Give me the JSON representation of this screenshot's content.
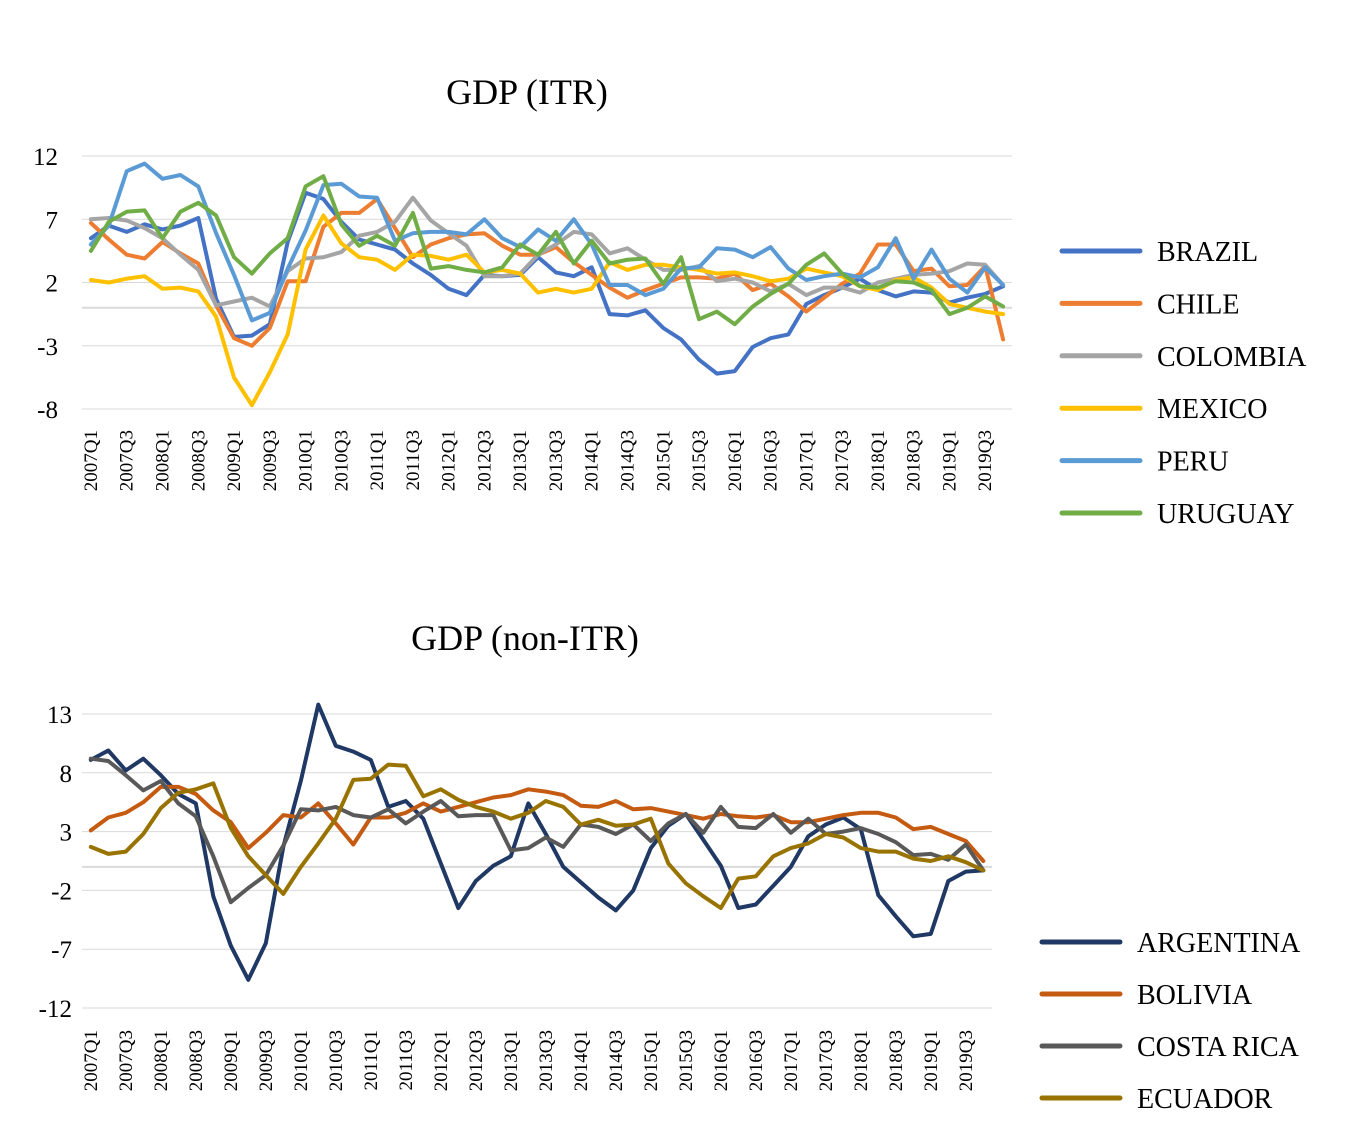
{
  "chart_data": [
    {
      "type": "line",
      "title": "GDP (ITR)",
      "xlabel": "",
      "ylabel": "",
      "ylim": [
        -8,
        12
      ],
      "yticks": [
        12,
        7,
        2,
        -3,
        -8
      ],
      "grid": true,
      "legend_position": "right",
      "x": [
        "2007Q1",
        "2007Q2",
        "2007Q3",
        "2007Q4",
        "2008Q1",
        "2008Q2",
        "2008Q3",
        "2008Q4",
        "2009Q1",
        "2009Q2",
        "2009Q3",
        "2009Q4",
        "2010Q1",
        "2010Q2",
        "2010Q3",
        "2010Q4",
        "2011Q1",
        "2011Q2",
        "2011Q3",
        "2011Q4",
        "2012Q1",
        "2012Q2",
        "2012Q3",
        "2012Q4",
        "2013Q1",
        "2013Q2",
        "2013Q3",
        "2013Q4",
        "2014Q1",
        "2014Q2",
        "2014Q3",
        "2014Q4",
        "2015Q1",
        "2015Q2",
        "2015Q3",
        "2015Q4",
        "2016Q1",
        "2016Q2",
        "2016Q3",
        "2016Q4",
        "2017Q1",
        "2017Q2",
        "2017Q3",
        "2017Q4",
        "2018Q1",
        "2018Q2",
        "2018Q3",
        "2018Q4",
        "2019Q1",
        "2019Q2",
        "2019Q3",
        "2019Q4"
      ],
      "xticks": [
        "2007Q1",
        "2007Q3",
        "2008Q1",
        "2008Q3",
        "2009Q1",
        "2009Q3",
        "2010Q1",
        "2010Q3",
        "2011Q1",
        "2011Q3",
        "2012Q1",
        "2012Q3",
        "2013Q1",
        "2013Q3",
        "2014Q1",
        "2014Q3",
        "2015Q1",
        "2015Q3",
        "2016Q1",
        "2016Q3",
        "2017Q1",
        "2017Q3",
        "2018Q1",
        "2018Q3",
        "2019Q1",
        "2019Q3"
      ],
      "series": [
        {
          "name": "BRAZIL",
          "color": "#4472c4",
          "values": [
            5.5,
            6.5,
            6.0,
            6.6,
            6.2,
            6.5,
            7.1,
            0.7,
            -2.3,
            -2.2,
            -1.3,
            5.2,
            9.1,
            8.6,
            6.8,
            5.4,
            5.0,
            4.6,
            3.5,
            2.6,
            1.5,
            1.0,
            2.6,
            2.5,
            2.6,
            4.0,
            2.8,
            2.5,
            3.2,
            -0.5,
            -0.6,
            -0.2,
            -1.6,
            -2.5,
            -4.1,
            -5.2,
            -5.0,
            -3.1,
            -2.4,
            -2.1,
            0.3,
            1.0,
            1.6,
            2.3,
            1.4,
            0.9,
            1.3,
            1.2,
            0.4,
            0.8,
            1.1,
            1.7
          ]
        },
        {
          "name": "CHILE",
          "color": "#ed7d31",
          "values": [
            6.7,
            5.4,
            4.2,
            3.9,
            5.2,
            4.3,
            3.5,
            0.2,
            -2.4,
            -3.0,
            -1.6,
            2.1,
            2.1,
            6.4,
            7.5,
            7.5,
            8.6,
            6.3,
            4.0,
            5.0,
            5.5,
            5.8,
            5.9,
            4.9,
            4.2,
            4.2,
            4.8,
            3.6,
            2.6,
            1.6,
            0.8,
            1.4,
            1.9,
            2.4,
            2.4,
            2.3,
            2.7,
            1.4,
            1.9,
            0.9,
            -0.3,
            0.8,
            1.9,
            2.7,
            5.0,
            5.0,
            2.9,
            3.1,
            1.7,
            1.8,
            3.3,
            -2.5
          ]
        },
        {
          "name": "COLOMBIA",
          "color": "#a5a5a5",
          "values": [
            7.0,
            7.1,
            6.9,
            6.3,
            5.5,
            4.2,
            3.0,
            0.2,
            0.5,
            0.8,
            0.1,
            2.9,
            3.9,
            4.0,
            4.4,
            5.7,
            6.0,
            6.8,
            8.7,
            6.9,
            5.9,
            4.9,
            2.5,
            2.5,
            2.7,
            4.2,
            5.0,
            6.0,
            5.8,
            4.3,
            4.7,
            3.8,
            3.0,
            3.0,
            3.3,
            2.1,
            2.3,
            2.0,
            1.3,
            1.9,
            1.0,
            1.6,
            1.6,
            1.2,
            2.0,
            2.3,
            2.6,
            2.7,
            2.9,
            3.5,
            3.4,
            1.8
          ]
        },
        {
          "name": "MEXICO",
          "color": "#ffc000",
          "values": [
            2.2,
            2.0,
            2.3,
            2.5,
            1.5,
            1.6,
            1.3,
            -0.7,
            -5.5,
            -7.7,
            -5.1,
            -2.1,
            4.6,
            7.3,
            5.1,
            4.0,
            3.8,
            3.0,
            4.2,
            4.1,
            3.8,
            4.2,
            2.8,
            3.0,
            2.7,
            1.2,
            1.5,
            1.2,
            1.5,
            3.6,
            3.0,
            3.4,
            3.4,
            3.2,
            3.0,
            2.7,
            2.8,
            2.5,
            2.1,
            2.3,
            3.1,
            2.8,
            2.5,
            1.7,
            1.4,
            2.2,
            2.4,
            1.6,
            0.3,
            0.0,
            -0.3,
            -0.5
          ]
        },
        {
          "name": "PERU",
          "color": "#5b9bd5",
          "values": [
            5.0,
            6.5,
            10.8,
            11.4,
            10.2,
            10.5,
            9.6,
            5.9,
            2.6,
            -1.0,
            -0.4,
            3.1,
            6.1,
            9.7,
            9.8,
            8.8,
            8.7,
            5.3,
            5.9,
            6.0,
            6.0,
            5.8,
            7.0,
            5.5,
            4.8,
            6.2,
            5.3,
            7.0,
            5.0,
            1.8,
            1.8,
            1.0,
            1.5,
            3.1,
            3.2,
            4.7,
            4.6,
            4.0,
            4.8,
            3.1,
            2.2,
            2.5,
            2.7,
            2.4,
            3.2,
            5.5,
            2.3,
            4.6,
            2.3,
            1.2,
            3.2,
            1.8
          ]
        },
        {
          "name": "URUGUAY",
          "color": "#70ad47",
          "values": [
            4.5,
            6.8,
            7.6,
            7.7,
            5.5,
            7.6,
            8.3,
            7.3,
            4.0,
            2.7,
            4.3,
            5.5,
            9.6,
            10.4,
            6.6,
            4.9,
            5.7,
            4.9,
            7.5,
            3.1,
            3.3,
            3.0,
            2.8,
            3.2,
            5.0,
            4.2,
            6.0,
            3.5,
            5.3,
            3.5,
            3.8,
            3.9,
            1.9,
            4.0,
            -0.9,
            -0.3,
            -1.3,
            0.1,
            1.1,
            1.9,
            3.4,
            4.3,
            2.7,
            1.7,
            1.6,
            2.1,
            2.0,
            1.4,
            -0.5,
            0.0,
            0.9,
            0.1
          ]
        }
      ]
    },
    {
      "type": "line",
      "title": "GDP (non-ITR)",
      "xlabel": "",
      "ylabel": "",
      "ylim": [
        -12,
        13
      ],
      "yticks": [
        13,
        8,
        3,
        -2,
        -7,
        -12
      ],
      "grid": true,
      "legend_position": "bottom-right",
      "x": [
        "2007Q1",
        "2007Q2",
        "2007Q3",
        "2007Q4",
        "2008Q1",
        "2008Q2",
        "2008Q3",
        "2008Q4",
        "2009Q1",
        "2009Q2",
        "2009Q3",
        "2009Q4",
        "2010Q1",
        "2010Q2",
        "2010Q3",
        "2010Q4",
        "2011Q1",
        "2011Q2",
        "2011Q3",
        "2011Q4",
        "2012Q1",
        "2012Q2",
        "2012Q3",
        "2012Q4",
        "2013Q1",
        "2013Q2",
        "2013Q3",
        "2013Q4",
        "2014Q1",
        "2014Q2",
        "2014Q3",
        "2014Q4",
        "2015Q1",
        "2015Q2",
        "2015Q3",
        "2015Q4",
        "2016Q1",
        "2016Q2",
        "2016Q3",
        "2016Q4",
        "2017Q1",
        "2017Q2",
        "2017Q3",
        "2017Q4",
        "2018Q1",
        "2018Q2",
        "2018Q3",
        "2018Q4",
        "2019Q1",
        "2019Q2",
        "2019Q3",
        "2019Q4"
      ],
      "xticks": [
        "2007Q1",
        "2007Q3",
        "2008Q1",
        "2008Q3",
        "2009Q1",
        "2009Q3",
        "2010Q1",
        "2010Q3",
        "2011Q1",
        "2011Q3",
        "2012Q1",
        "2012Q3",
        "2013Q1",
        "2013Q3",
        "2014Q1",
        "2014Q3",
        "2015Q1",
        "2015Q3",
        "2016Q1",
        "2016Q3",
        "2017Q1",
        "2017Q3",
        "2018Q1",
        "2018Q3",
        "2019Q1",
        "2019Q3"
      ],
      "series": [
        {
          "name": "ARGENTINA",
          "color": "#203864",
          "values": [
            9.1,
            9.9,
            8.2,
            9.2,
            7.8,
            6.2,
            5.4,
            -2.5,
            -6.7,
            -9.6,
            -6.5,
            1.7,
            7.3,
            13.8,
            10.3,
            9.8,
            9.1,
            5.1,
            5.6,
            4.1,
            0.3,
            -3.5,
            -1.2,
            0.1,
            0.9,
            5.4,
            2.8,
            0.0,
            -1.3,
            -2.6,
            -3.7,
            -2.0,
            1.6,
            3.5,
            4.5,
            2.3,
            0.1,
            -3.5,
            -3.2,
            -1.6,
            0.0,
            2.6,
            3.6,
            4.2,
            3.2,
            -2.4,
            -4.2,
            -5.9,
            -5.7,
            -1.2,
            -0.4,
            -0.3
          ]
        },
        {
          "name": "BOLIVIA",
          "color": "#c55a11",
          "values": [
            3.1,
            4.2,
            4.6,
            5.5,
            6.8,
            6.8,
            6.2,
            4.8,
            3.8,
            1.6,
            2.9,
            4.4,
            4.2,
            5.4,
            3.7,
            1.9,
            4.2,
            4.2,
            4.6,
            5.4,
            4.7,
            5.1,
            5.5,
            5.9,
            6.1,
            6.6,
            6.4,
            6.1,
            5.2,
            5.1,
            5.6,
            4.9,
            5.0,
            4.7,
            4.4,
            4.1,
            4.5,
            4.3,
            4.2,
            4.4,
            3.8,
            3.8,
            4.1,
            4.4,
            4.6,
            4.6,
            4.2,
            3.2,
            3.4,
            2.8,
            2.2,
            0.5
          ]
        },
        {
          "name": "COSTA RICA",
          "color": "#595959",
          "values": [
            9.2,
            9.0,
            7.8,
            6.5,
            7.3,
            5.4,
            4.3,
            0.9,
            -3.0,
            -1.8,
            -0.7,
            1.8,
            4.9,
            4.8,
            5.1,
            4.4,
            4.2,
            4.9,
            3.7,
            4.7,
            5.6,
            4.3,
            4.4,
            4.4,
            1.4,
            1.6,
            2.5,
            1.7,
            3.6,
            3.4,
            2.8,
            3.6,
            2.2,
            3.7,
            4.5,
            2.9,
            5.1,
            3.4,
            3.3,
            4.5,
            2.9,
            4.1,
            2.8,
            3.0,
            3.3,
            2.8,
            2.1,
            1.0,
            1.1,
            0.6,
            1.9,
            -0.3
          ]
        },
        {
          "name": "ECUADOR",
          "color": "#997300",
          "values": [
            1.7,
            1.1,
            1.3,
            2.8,
            5.0,
            6.3,
            6.6,
            7.1,
            3.3,
            0.9,
            -0.7,
            -2.3,
            0.0,
            2.0,
            4.1,
            7.4,
            7.5,
            8.7,
            8.6,
            6.0,
            6.6,
            5.7,
            5.1,
            4.7,
            4.1,
            4.6,
            5.6,
            5.1,
            3.6,
            4.0,
            3.5,
            3.6,
            4.1,
            0.3,
            -1.4,
            -2.5,
            -3.5,
            -1.0,
            -0.8,
            0.9,
            1.6,
            2.0,
            2.8,
            2.5,
            1.6,
            1.3,
            1.3,
            0.7,
            0.5,
            0.9,
            0.4,
            -0.3
          ]
        }
      ]
    }
  ]
}
